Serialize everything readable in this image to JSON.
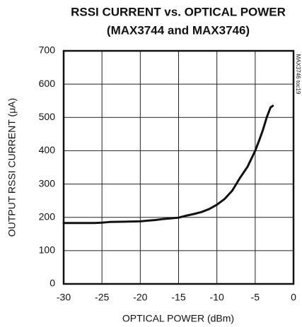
{
  "chart_data": {
    "type": "line",
    "title": "RSSI CURRENT vs. OPTICAL POWER",
    "subtitle": "(MAX3744 and MAX3746)",
    "x_label": "OPTICAL POWER (dBm)",
    "y_label": "OUTPUT RSSI CURRENT (μA)",
    "annotation": "MAX3746 toc19",
    "x": [
      -30,
      -28,
      -26,
      -25,
      -24,
      -22,
      -20,
      -19,
      -18,
      -17,
      -16,
      -15,
      -14,
      -13,
      -12,
      -11,
      -10,
      -9,
      -8,
      -7,
      -6,
      -5,
      -4.5,
      -4,
      -3.5,
      -3,
      -2.7
    ],
    "series": [
      {
        "color": "#111111",
        "values": [
          183,
          183,
          183,
          184,
          186,
          187,
          188,
          190,
          192,
          195,
          197,
          199,
          205,
          210,
          216,
          225,
          238,
          255,
          280,
          318,
          352,
          400,
          430,
          462,
          500,
          530,
          535
        ]
      }
    ],
    "xlim": [
      -30,
      0
    ],
    "xticks": [
      -30,
      -25,
      -20,
      -15,
      -10,
      -5,
      0
    ],
    "ylim": [
      0,
      700
    ],
    "yticks": [
      0,
      100,
      200,
      300,
      400,
      500,
      600,
      700
    ],
    "grid": true
  }
}
